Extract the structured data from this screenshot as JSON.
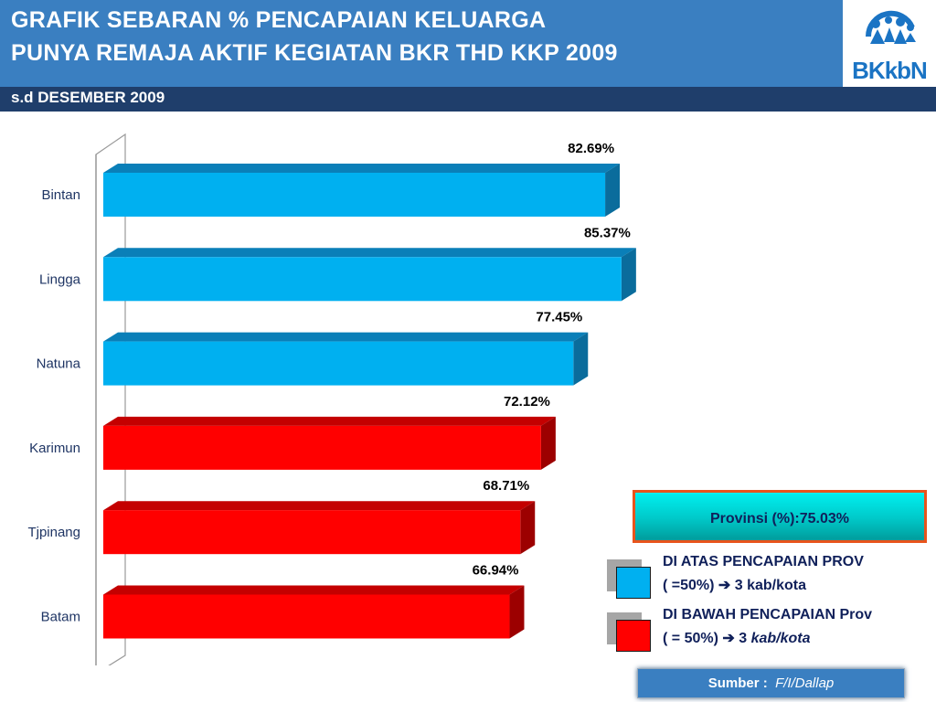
{
  "header": {
    "title_line1": "GRAFIK  SEBARAN % PENCAPAIAN KELUARGA",
    "title_line2": "PUNYA REMAJA AKTIF KEGIATAN BKR THD KKP 2009",
    "subtitle": "s.d  DESEMBER  2009",
    "logo_text": "BKkbN"
  },
  "colors": {
    "above": "#00b0f0",
    "below": "#ff0000",
    "header_bg": "#3a7fc1",
    "subbar_bg": "#1f3e6b"
  },
  "chart_data": {
    "type": "bar",
    "orientation": "horizontal",
    "categories": [
      "Bintan",
      "Lingga",
      "Natuna",
      "Karimun",
      "Tjpinang",
      "Batam"
    ],
    "values": [
      82.69,
      85.37,
      77.45,
      72.12,
      68.71,
      66.94
    ],
    "data_labels": [
      "82.69%",
      "85.37%",
      "77.45%",
      "72.12%",
      "68.71%",
      "66.94%"
    ],
    "bar_groups": [
      "above",
      "above",
      "above",
      "below",
      "below",
      "below"
    ],
    "xlim": [
      0,
      100
    ],
    "grid": false
  },
  "legend": {
    "province_box": "Provinsi (%):75.03%",
    "above_line1": "DI  ATAS PENCAPAIAN PROV",
    "above_line2": "( =50%) ➔ 3 kab/kota",
    "below_line1": "DI BAWAH PENCAPAIAN Prov",
    "below_line2_prefix": "( = 50%) ➔ 3 ",
    "below_line2_italic": "kab/kota"
  },
  "source": {
    "label": "Sumber :",
    "value": "F/I/Dallap"
  }
}
